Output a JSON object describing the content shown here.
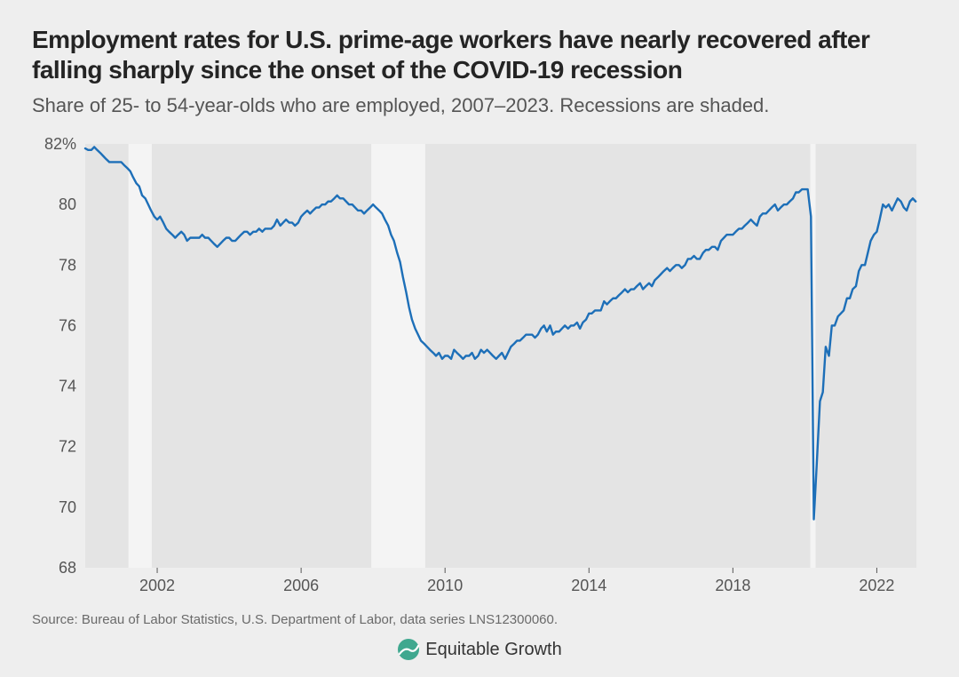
{
  "title": "Employment rates for U.S. prime-age workers have nearly recovered after falling sharply since the onset of the COVID-19 recession",
  "subtitle": "Share of 25- to 54-year-olds who are employed, 2007–2023. Recessions are shaded.",
  "source": "Source: Bureau of Labor Statistics, U.S. Department of Labor, data series LNS12300060.",
  "logo_text": "Equitable Growth",
  "chart": {
    "type": "line",
    "background_color": "#eeeeee",
    "container_background": "#ffffff",
    "plot_background": "#e4e4e4",
    "recession_band_color": "#f4f4f4",
    "line_color": "#1d6fb8",
    "line_width": 2.4,
    "axis_text_color": "#555555",
    "title_fontsize": 28,
    "subtitle_fontsize": 22,
    "axis_label_fontsize": 18,
    "source_fontsize": 15,
    "logo_fontsize": 20,
    "x_domain": [
      2000,
      2023.1
    ],
    "y_domain": [
      68,
      82
    ],
    "x_ticks": [
      2002,
      2006,
      2010,
      2014,
      2018,
      2022
    ],
    "y_ticks": [
      {
        "v": 68,
        "label": "68"
      },
      {
        "v": 70,
        "label": "70"
      },
      {
        "v": 72,
        "label": "72"
      },
      {
        "v": 74,
        "label": "74"
      },
      {
        "v": 76,
        "label": "76"
      },
      {
        "v": 78,
        "label": "78"
      },
      {
        "v": 80,
        "label": "80"
      },
      {
        "v": 82,
        "label": "82%"
      }
    ],
    "recessions": [
      {
        "start": 2001.2,
        "end": 2001.85
      },
      {
        "start": 2007.95,
        "end": 2009.45
      },
      {
        "start": 2020.15,
        "end": 2020.3
      }
    ],
    "series": [
      [
        2000.0,
        81.85
      ],
      [
        2000.08,
        81.8
      ],
      [
        2000.17,
        81.8
      ],
      [
        2000.25,
        81.9
      ],
      [
        2000.33,
        81.8
      ],
      [
        2000.42,
        81.7
      ],
      [
        2000.5,
        81.6
      ],
      [
        2000.58,
        81.5
      ],
      [
        2000.67,
        81.4
      ],
      [
        2000.75,
        81.4
      ],
      [
        2000.83,
        81.4
      ],
      [
        2000.92,
        81.4
      ],
      [
        2001.0,
        81.4
      ],
      [
        2001.08,
        81.3
      ],
      [
        2001.17,
        81.2
      ],
      [
        2001.25,
        81.1
      ],
      [
        2001.33,
        80.9
      ],
      [
        2001.42,
        80.7
      ],
      [
        2001.5,
        80.6
      ],
      [
        2001.58,
        80.3
      ],
      [
        2001.67,
        80.2
      ],
      [
        2001.75,
        80.0
      ],
      [
        2001.83,
        79.8
      ],
      [
        2001.92,
        79.6
      ],
      [
        2002.0,
        79.5
      ],
      [
        2002.08,
        79.6
      ],
      [
        2002.17,
        79.4
      ],
      [
        2002.25,
        79.2
      ],
      [
        2002.33,
        79.1
      ],
      [
        2002.42,
        79.0
      ],
      [
        2002.5,
        78.9
      ],
      [
        2002.58,
        79.0
      ],
      [
        2002.67,
        79.1
      ],
      [
        2002.75,
        79.0
      ],
      [
        2002.83,
        78.8
      ],
      [
        2002.92,
        78.9
      ],
      [
        2003.0,
        78.9
      ],
      [
        2003.08,
        78.9
      ],
      [
        2003.17,
        78.9
      ],
      [
        2003.25,
        79.0
      ],
      [
        2003.33,
        78.9
      ],
      [
        2003.42,
        78.9
      ],
      [
        2003.5,
        78.8
      ],
      [
        2003.58,
        78.7
      ],
      [
        2003.67,
        78.6
      ],
      [
        2003.75,
        78.7
      ],
      [
        2003.83,
        78.8
      ],
      [
        2003.92,
        78.9
      ],
      [
        2004.0,
        78.9
      ],
      [
        2004.08,
        78.8
      ],
      [
        2004.17,
        78.8
      ],
      [
        2004.25,
        78.9
      ],
      [
        2004.33,
        79.0
      ],
      [
        2004.42,
        79.1
      ],
      [
        2004.5,
        79.1
      ],
      [
        2004.58,
        79.0
      ],
      [
        2004.67,
        79.1
      ],
      [
        2004.75,
        79.1
      ],
      [
        2004.83,
        79.2
      ],
      [
        2004.92,
        79.1
      ],
      [
        2005.0,
        79.2
      ],
      [
        2005.08,
        79.2
      ],
      [
        2005.17,
        79.2
      ],
      [
        2005.25,
        79.3
      ],
      [
        2005.33,
        79.5
      ],
      [
        2005.42,
        79.3
      ],
      [
        2005.5,
        79.4
      ],
      [
        2005.58,
        79.5
      ],
      [
        2005.67,
        79.4
      ],
      [
        2005.75,
        79.4
      ],
      [
        2005.83,
        79.3
      ],
      [
        2005.92,
        79.4
      ],
      [
        2006.0,
        79.6
      ],
      [
        2006.08,
        79.7
      ],
      [
        2006.17,
        79.8
      ],
      [
        2006.25,
        79.7
      ],
      [
        2006.33,
        79.8
      ],
      [
        2006.42,
        79.9
      ],
      [
        2006.5,
        79.9
      ],
      [
        2006.58,
        80.0
      ],
      [
        2006.67,
        80.0
      ],
      [
        2006.75,
        80.1
      ],
      [
        2006.83,
        80.1
      ],
      [
        2006.92,
        80.2
      ],
      [
        2007.0,
        80.3
      ],
      [
        2007.08,
        80.2
      ],
      [
        2007.17,
        80.2
      ],
      [
        2007.25,
        80.1
      ],
      [
        2007.33,
        80.0
      ],
      [
        2007.42,
        80.0
      ],
      [
        2007.5,
        79.9
      ],
      [
        2007.58,
        79.8
      ],
      [
        2007.67,
        79.8
      ],
      [
        2007.75,
        79.7
      ],
      [
        2007.83,
        79.8
      ],
      [
        2007.92,
        79.9
      ],
      [
        2008.0,
        80.0
      ],
      [
        2008.08,
        79.9
      ],
      [
        2008.17,
        79.8
      ],
      [
        2008.25,
        79.7
      ],
      [
        2008.33,
        79.5
      ],
      [
        2008.42,
        79.3
      ],
      [
        2008.5,
        79.0
      ],
      [
        2008.58,
        78.8
      ],
      [
        2008.67,
        78.4
      ],
      [
        2008.75,
        78.1
      ],
      [
        2008.83,
        77.6
      ],
      [
        2008.92,
        77.1
      ],
      [
        2009.0,
        76.6
      ],
      [
        2009.08,
        76.2
      ],
      [
        2009.17,
        75.9
      ],
      [
        2009.25,
        75.7
      ],
      [
        2009.33,
        75.5
      ],
      [
        2009.42,
        75.4
      ],
      [
        2009.5,
        75.3
      ],
      [
        2009.58,
        75.2
      ],
      [
        2009.67,
        75.1
      ],
      [
        2009.75,
        75.0
      ],
      [
        2009.83,
        75.1
      ],
      [
        2009.92,
        74.9
      ],
      [
        2010.0,
        75.0
      ],
      [
        2010.08,
        75.0
      ],
      [
        2010.17,
        74.9
      ],
      [
        2010.25,
        75.2
      ],
      [
        2010.33,
        75.1
      ],
      [
        2010.42,
        75.0
      ],
      [
        2010.5,
        74.9
      ],
      [
        2010.58,
        75.0
      ],
      [
        2010.67,
        75.0
      ],
      [
        2010.75,
        75.1
      ],
      [
        2010.83,
        74.9
      ],
      [
        2010.92,
        75.0
      ],
      [
        2011.0,
        75.2
      ],
      [
        2011.08,
        75.1
      ],
      [
        2011.17,
        75.2
      ],
      [
        2011.25,
        75.1
      ],
      [
        2011.33,
        75.0
      ],
      [
        2011.42,
        74.9
      ],
      [
        2011.5,
        75.0
      ],
      [
        2011.58,
        75.1
      ],
      [
        2011.67,
        74.9
      ],
      [
        2011.75,
        75.1
      ],
      [
        2011.83,
        75.3
      ],
      [
        2011.92,
        75.4
      ],
      [
        2012.0,
        75.5
      ],
      [
        2012.08,
        75.5
      ],
      [
        2012.17,
        75.6
      ],
      [
        2012.25,
        75.7
      ],
      [
        2012.33,
        75.7
      ],
      [
        2012.42,
        75.7
      ],
      [
        2012.5,
        75.6
      ],
      [
        2012.58,
        75.7
      ],
      [
        2012.67,
        75.9
      ],
      [
        2012.75,
        76.0
      ],
      [
        2012.83,
        75.8
      ],
      [
        2012.92,
        76.0
      ],
      [
        2013.0,
        75.7
      ],
      [
        2013.08,
        75.8
      ],
      [
        2013.17,
        75.8
      ],
      [
        2013.25,
        75.9
      ],
      [
        2013.33,
        76.0
      ],
      [
        2013.42,
        75.9
      ],
      [
        2013.5,
        76.0
      ],
      [
        2013.58,
        76.0
      ],
      [
        2013.67,
        76.1
      ],
      [
        2013.75,
        75.9
      ],
      [
        2013.83,
        76.1
      ],
      [
        2013.92,
        76.2
      ],
      [
        2014.0,
        76.4
      ],
      [
        2014.08,
        76.4
      ],
      [
        2014.17,
        76.5
      ],
      [
        2014.25,
        76.5
      ],
      [
        2014.33,
        76.5
      ],
      [
        2014.42,
        76.8
      ],
      [
        2014.5,
        76.7
      ],
      [
        2014.58,
        76.8
      ],
      [
        2014.67,
        76.9
      ],
      [
        2014.75,
        76.9
      ],
      [
        2014.83,
        77.0
      ],
      [
        2014.92,
        77.1
      ],
      [
        2015.0,
        77.2
      ],
      [
        2015.08,
        77.1
      ],
      [
        2015.17,
        77.2
      ],
      [
        2015.25,
        77.2
      ],
      [
        2015.33,
        77.3
      ],
      [
        2015.42,
        77.4
      ],
      [
        2015.5,
        77.2
      ],
      [
        2015.58,
        77.3
      ],
      [
        2015.67,
        77.4
      ],
      [
        2015.75,
        77.3
      ],
      [
        2015.83,
        77.5
      ],
      [
        2015.92,
        77.6
      ],
      [
        2016.0,
        77.7
      ],
      [
        2016.08,
        77.8
      ],
      [
        2016.17,
        77.9
      ],
      [
        2016.25,
        77.8
      ],
      [
        2016.33,
        77.9
      ],
      [
        2016.42,
        78.0
      ],
      [
        2016.5,
        78.0
      ],
      [
        2016.58,
        77.9
      ],
      [
        2016.67,
        78.0
      ],
      [
        2016.75,
        78.2
      ],
      [
        2016.83,
        78.2
      ],
      [
        2016.92,
        78.3
      ],
      [
        2017.0,
        78.2
      ],
      [
        2017.08,
        78.2
      ],
      [
        2017.17,
        78.4
      ],
      [
        2017.25,
        78.5
      ],
      [
        2017.33,
        78.5
      ],
      [
        2017.42,
        78.6
      ],
      [
        2017.5,
        78.6
      ],
      [
        2017.58,
        78.5
      ],
      [
        2017.67,
        78.8
      ],
      [
        2017.75,
        78.9
      ],
      [
        2017.83,
        79.0
      ],
      [
        2017.92,
        79.0
      ],
      [
        2018.0,
        79.0
      ],
      [
        2018.08,
        79.1
      ],
      [
        2018.17,
        79.2
      ],
      [
        2018.25,
        79.2
      ],
      [
        2018.33,
        79.3
      ],
      [
        2018.42,
        79.4
      ],
      [
        2018.5,
        79.5
      ],
      [
        2018.58,
        79.4
      ],
      [
        2018.67,
        79.3
      ],
      [
        2018.75,
        79.6
      ],
      [
        2018.83,
        79.7
      ],
      [
        2018.92,
        79.7
      ],
      [
        2019.0,
        79.8
      ],
      [
        2019.08,
        79.9
      ],
      [
        2019.17,
        80.0
      ],
      [
        2019.25,
        79.8
      ],
      [
        2019.33,
        79.9
      ],
      [
        2019.42,
        80.0
      ],
      [
        2019.5,
        80.0
      ],
      [
        2019.58,
        80.1
      ],
      [
        2019.67,
        80.2
      ],
      [
        2019.75,
        80.4
      ],
      [
        2019.83,
        80.4
      ],
      [
        2019.92,
        80.5
      ],
      [
        2020.0,
        80.5
      ],
      [
        2020.08,
        80.5
      ],
      [
        2020.17,
        79.6
      ],
      [
        2020.25,
        69.6
      ],
      [
        2020.33,
        71.4
      ],
      [
        2020.42,
        73.5
      ],
      [
        2020.5,
        73.8
      ],
      [
        2020.58,
        75.3
      ],
      [
        2020.67,
        75.0
      ],
      [
        2020.75,
        76.0
      ],
      [
        2020.83,
        76.0
      ],
      [
        2020.92,
        76.3
      ],
      [
        2021.0,
        76.4
      ],
      [
        2021.08,
        76.5
      ],
      [
        2021.17,
        76.9
      ],
      [
        2021.25,
        76.9
      ],
      [
        2021.33,
        77.2
      ],
      [
        2021.42,
        77.3
      ],
      [
        2021.5,
        77.8
      ],
      [
        2021.58,
        78.0
      ],
      [
        2021.67,
        78.0
      ],
      [
        2021.75,
        78.4
      ],
      [
        2021.83,
        78.8
      ],
      [
        2021.92,
        79.0
      ],
      [
        2022.0,
        79.1
      ],
      [
        2022.08,
        79.5
      ],
      [
        2022.17,
        80.0
      ],
      [
        2022.25,
        79.9
      ],
      [
        2022.33,
        80.0
      ],
      [
        2022.42,
        79.8
      ],
      [
        2022.5,
        80.0
      ],
      [
        2022.58,
        80.2
      ],
      [
        2022.67,
        80.1
      ],
      [
        2022.75,
        79.9
      ],
      [
        2022.83,
        79.8
      ],
      [
        2022.92,
        80.1
      ],
      [
        2023.0,
        80.2
      ],
      [
        2023.08,
        80.1
      ]
    ]
  }
}
